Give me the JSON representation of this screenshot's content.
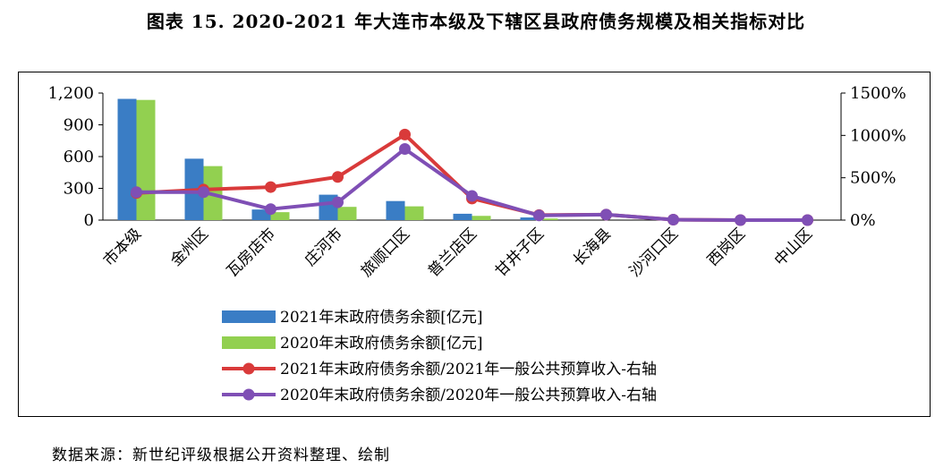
{
  "title": "图表 15. 2020-2021 年大连市本级及下辖区县政府债务规模及相关指标对比",
  "source": "数据来源：新世纪评级根据公开资料整理、绘制",
  "chart_data": {
    "type": "bar+line",
    "categories": [
      "市本级",
      "金州区",
      "瓦房店市",
      "庄河市",
      "旅顺口区",
      "普兰店区",
      "甘井子区",
      "长海县",
      "沙河口区",
      "西岗区",
      "中山区"
    ],
    "bar_series": [
      {
        "name": "2021年末政府债务余额[亿元]",
        "color": "#3a7dc5",
        "values": [
          1145,
          580,
          100,
          240,
          180,
          60,
          25,
          0,
          0,
          0,
          0
        ]
      },
      {
        "name": "2020年末政府债务余额[亿元]",
        "color": "#92d050",
        "values": [
          1135,
          510,
          75,
          125,
          130,
          40,
          15,
          0,
          0,
          0,
          0
        ]
      }
    ],
    "line_series": [
      {
        "name": "2021年末政府债务余额/2021年一般公共预算收入-右轴",
        "color": "#d93a3a",
        "values": [
          320,
          360,
          390,
          510,
          1010,
          255,
          60,
          65,
          5,
          0,
          0
        ]
      },
      {
        "name": "2020年末政府债务余额/2020年一般公共预算收入-右轴",
        "color": "#7f4fb5",
        "values": [
          330,
          330,
          130,
          210,
          840,
          285,
          55,
          65,
          5,
          0,
          0
        ]
      }
    ],
    "y_left": {
      "min": 0,
      "max": 1200,
      "ticks": [
        0,
        300,
        600,
        900,
        1200
      ],
      "tick_labels": [
        "0",
        "300",
        "600",
        "900",
        "1,200"
      ]
    },
    "y_right": {
      "min": 0,
      "max": 1500,
      "ticks": [
        0,
        500,
        1000,
        1500
      ],
      "tick_labels": [
        "0%",
        "500%",
        "1000%",
        "1500%"
      ]
    },
    "legend_position": "bottom",
    "grid": false
  }
}
